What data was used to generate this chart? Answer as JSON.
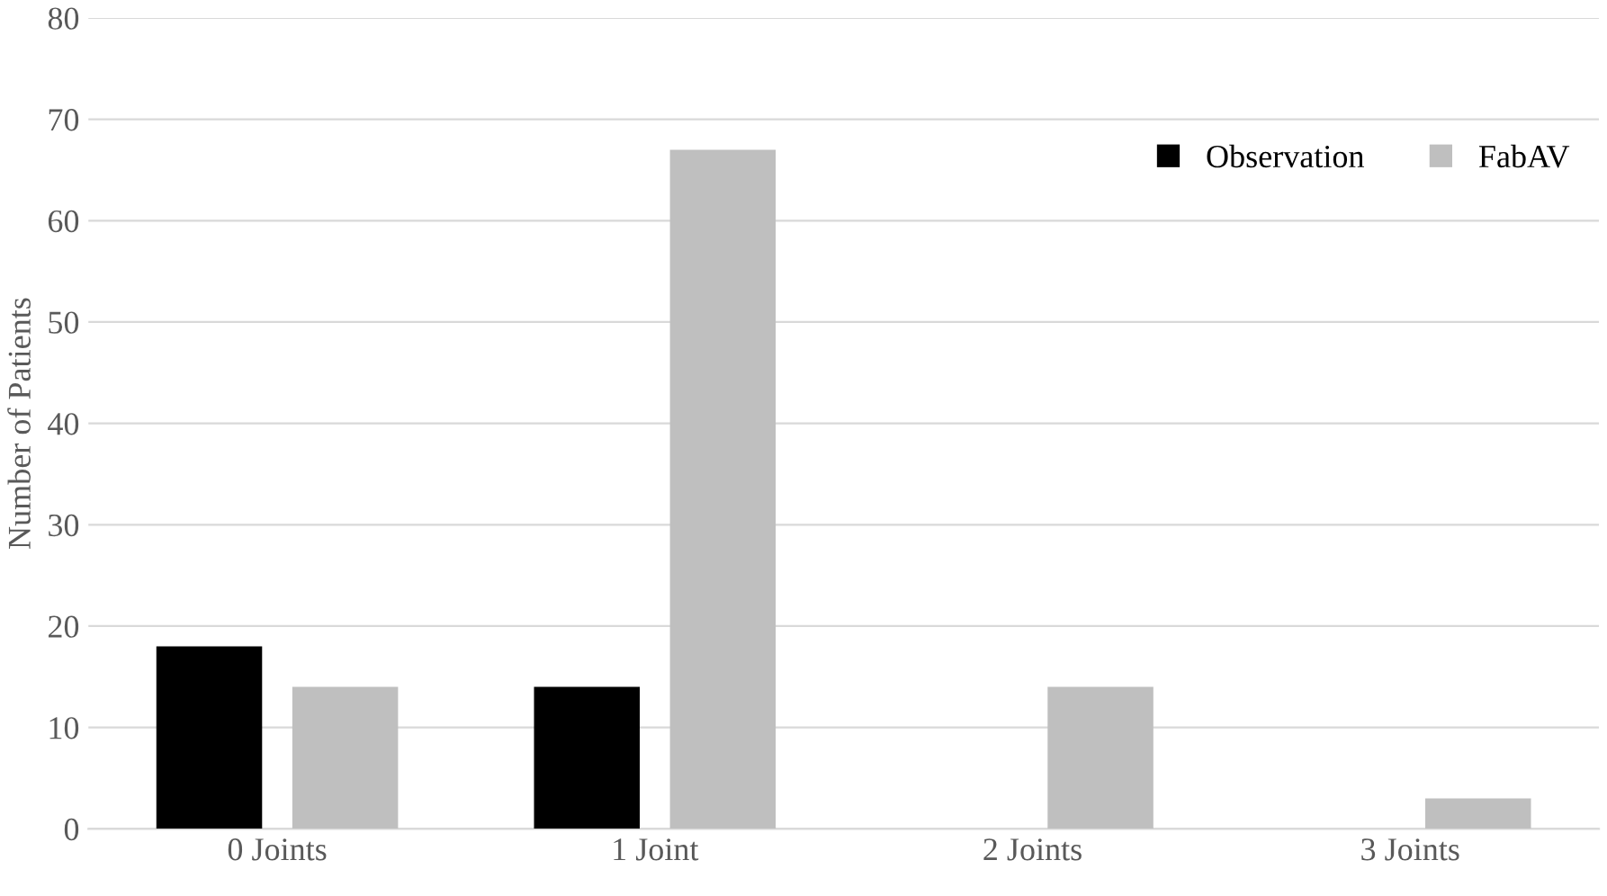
{
  "chart_data": {
    "type": "bar",
    "ylabel": "Number of Patients",
    "categories": [
      "0 Joints",
      "1 Joint",
      "2 Joints",
      "3 Joints"
    ],
    "series": [
      {
        "name": "Observation",
        "color": "#000000",
        "values": [
          18,
          14,
          0,
          0
        ]
      },
      {
        "name": "FabAV",
        "color": "#bfbfbf",
        "values": [
          14,
          67,
          14,
          3
        ]
      }
    ],
    "ylim": [
      0,
      80
    ],
    "yticks": [
      0,
      10,
      20,
      30,
      40,
      50,
      60,
      70,
      80
    ],
    "grid": "y",
    "legend": "top right"
  }
}
